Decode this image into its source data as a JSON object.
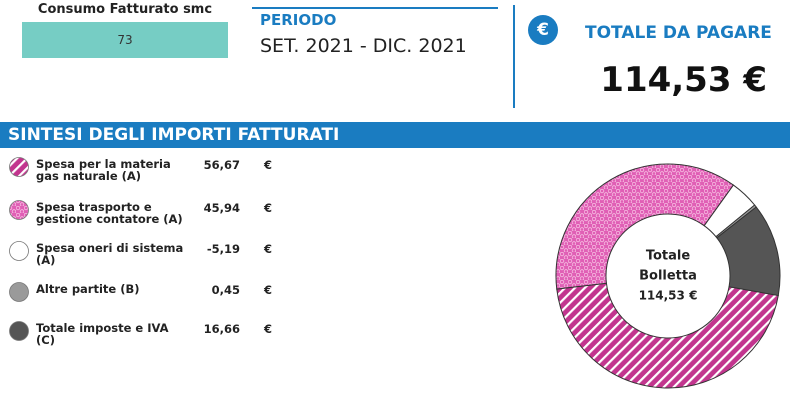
{
  "consumo": {
    "label": "Consumo Fatturato smc",
    "value": "73"
  },
  "periodo": {
    "label": "PERIODO",
    "value": "SET. 2021 - DIC. 2021"
  },
  "totale": {
    "icon": "€",
    "label": "TOTALE DA PAGARE",
    "value": "114,53 €"
  },
  "chart_data": {
    "type": "donut",
    "title": "SINTESI DEGLI IMPORTI FATTURATI",
    "categories": [
      "Spesa per la materia gas naturale (A)",
      "Spesa trasporto e gestione contatore (A)",
      "Spesa oneri di sistema (A)",
      "Altre partite (B)",
      "Totale imposte e IVA (C)"
    ],
    "values": [
      56.67,
      45.94,
      -5.19,
      0.45,
      16.66
    ],
    "value_labels": [
      "56,67",
      "45,94",
      "-5,19",
      "0,45",
      "16,66"
    ],
    "unit": "€",
    "colors": [
      "url(#hatch)",
      "url(#dots)",
      "#ffffff",
      "#9a9a9a",
      "#555555"
    ],
    "center_label": [
      "Totale",
      "Bolletta",
      "114,53 €"
    ]
  }
}
